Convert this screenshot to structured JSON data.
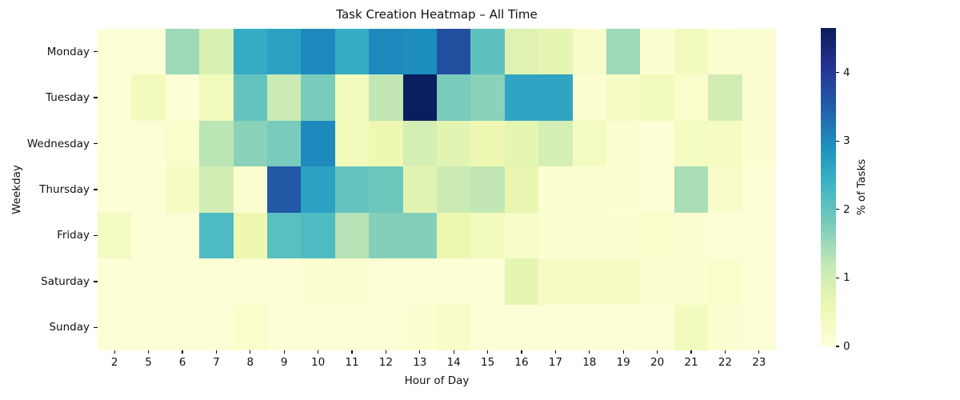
{
  "chart_data": {
    "type": "heatmap",
    "title": "Task Creation Heatmap – All Time",
    "xlabel": "Hour of Day",
    "ylabel": "Weekday",
    "x_categories": [
      "2",
      "5",
      "6",
      "7",
      "8",
      "9",
      "10",
      "11",
      "12",
      "13",
      "14",
      "15",
      "16",
      "17",
      "18",
      "19",
      "20",
      "21",
      "22",
      "23"
    ],
    "y_categories": [
      "Monday",
      "Tuesday",
      "Wednesday",
      "Thursday",
      "Friday",
      "Saturday",
      "Sunday"
    ],
    "values": [
      [
        0.05,
        0.05,
        1.5,
        0.9,
        2.5,
        2.65,
        3.0,
        2.5,
        3.0,
        2.95,
        3.7,
        2.05,
        0.8,
        0.7,
        0.25,
        1.5,
        0.1,
        0.4,
        0.15,
        0.1
      ],
      [
        0.05,
        0.4,
        0.05,
        0.45,
        2.0,
        1.1,
        1.8,
        0.4,
        1.2,
        4.6,
        1.8,
        1.65,
        2.6,
        2.6,
        0.1,
        0.3,
        0.45,
        0.2,
        1.0,
        0.1
      ],
      [
        0.05,
        0.05,
        0.2,
        1.25,
        1.65,
        1.8,
        3.0,
        0.45,
        0.55,
        0.95,
        0.75,
        0.55,
        0.7,
        0.95,
        0.35,
        0.1,
        0.05,
        0.35,
        0.3,
        0.1
      ],
      [
        0.05,
        0.05,
        0.3,
        1.0,
        0.15,
        3.55,
        2.65,
        2.0,
        1.9,
        0.75,
        1.1,
        1.2,
        0.65,
        0.1,
        0.1,
        0.1,
        0.05,
        1.4,
        0.25,
        0.05
      ],
      [
        0.35,
        0.05,
        0.05,
        2.2,
        0.55,
        2.1,
        2.2,
        1.3,
        1.7,
        1.7,
        0.6,
        0.4,
        0.25,
        0.1,
        0.1,
        0.15,
        0.2,
        0.1,
        0.05,
        0.05
      ],
      [
        0.05,
        0.05,
        0.05,
        0.05,
        0.05,
        0.05,
        0.1,
        0.15,
        0.05,
        0.05,
        0.05,
        0.05,
        0.7,
        0.3,
        0.3,
        0.3,
        0.1,
        0.1,
        0.2,
        0.05
      ],
      [
        0.05,
        0.05,
        0.05,
        0.05,
        0.2,
        0.05,
        0.05,
        0.05,
        0.05,
        0.1,
        0.25,
        0.05,
        0.05,
        0.05,
        0.05,
        0.05,
        0.05,
        0.4,
        0.15,
        0.05
      ]
    ],
    "value_unit": "% of Tasks",
    "colormap": "YlGnBu",
    "vmin": 0,
    "vmax": 4.65,
    "colorbar_label": "% of Tasks",
    "colorbar_ticks": [
      0,
      1,
      2,
      3,
      4
    ],
    "colorbar_position": "right",
    "grid": false
  }
}
